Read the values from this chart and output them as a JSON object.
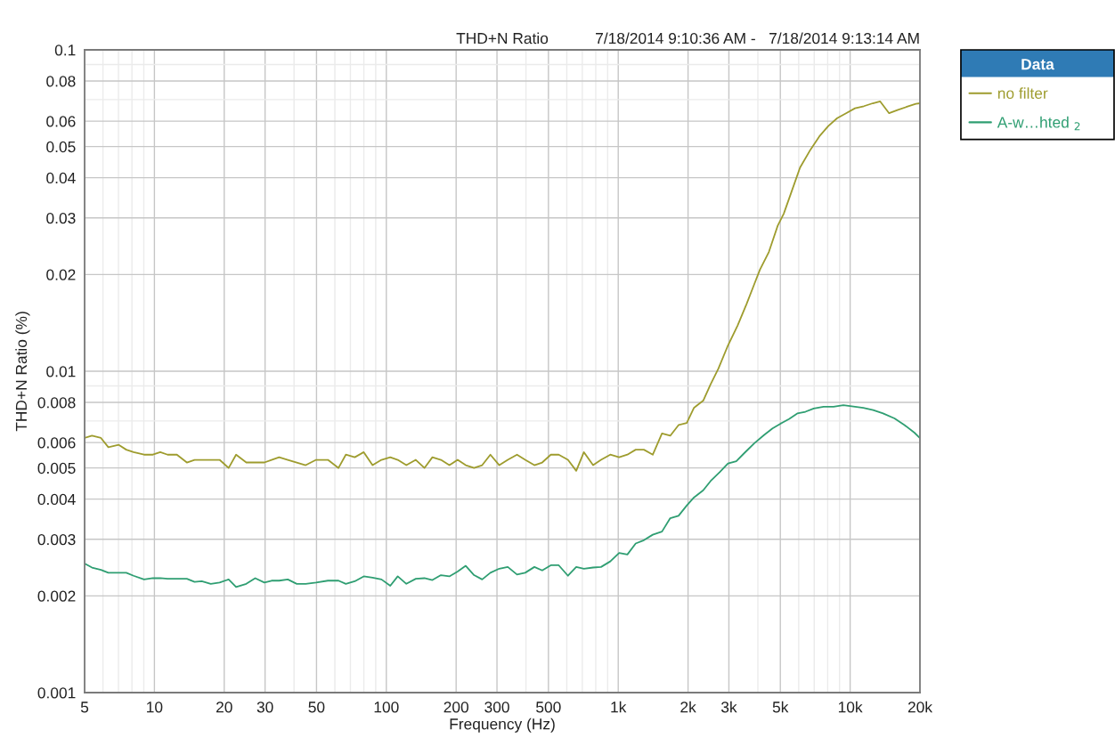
{
  "chart_data": {
    "type": "line",
    "title": "THD+N Ratio",
    "subtitle": "7/18/2014 9:10:36 AM -   7/18/2014 9:13:14 AM",
    "xlabel": "Frequency (Hz)",
    "ylabel": "THD+N Ratio (%)",
    "legend_title": "Data",
    "log": "xy",
    "grid": true,
    "legend": "top right",
    "xlim": [
      5,
      20000
    ],
    "ylim": [
      0.001,
      0.1
    ],
    "xticks": [
      5,
      {
        "value": 6,
        "label": null
      },
      {
        "value": 7,
        "label": null
      },
      {
        "value": 8,
        "label": null
      },
      {
        "value": 9,
        "label": null
      },
      10,
      20,
      30,
      {
        "value": 40,
        "label": null
      },
      50,
      {
        "value": 60,
        "label": null
      },
      {
        "value": 70,
        "label": null
      },
      {
        "value": 80,
        "label": null
      },
      {
        "value": 90,
        "label": null
      },
      100,
      200,
      300,
      {
        "value": 400,
        "label": null
      },
      500,
      {
        "value": 600,
        "label": null
      },
      {
        "value": 700,
        "label": null
      },
      {
        "value": 800,
        "label": null
      },
      {
        "value": 900,
        "label": null
      },
      {
        "value": 1000,
        "label": "1k"
      },
      {
        "value": 2000,
        "label": "2k"
      },
      {
        "value": 3000,
        "label": "3k"
      },
      {
        "value": 4000,
        "label": null
      },
      {
        "value": 5000,
        "label": "5k"
      },
      {
        "value": 6000,
        "label": null
      },
      {
        "value": 7000,
        "label": null
      },
      {
        "value": 8000,
        "label": null
      },
      {
        "value": 9000,
        "label": null
      },
      {
        "value": 10000,
        "label": "10k"
      },
      {
        "value": 20000,
        "label": "20k"
      }
    ],
    "yticks": [
      0.001,
      0.002,
      0.003,
      0.004,
      0.005,
      0.006,
      {
        "value": 0.007,
        "label": null
      },
      0.008,
      {
        "value": 0.009,
        "label": null
      },
      0.01,
      0.02,
      0.03,
      0.04,
      0.05,
      0.06,
      {
        "value": 0.07,
        "label": null
      },
      0.08,
      {
        "value": 0.09,
        "label": null
      },
      0.1
    ],
    "series": [
      {
        "name": "no filter",
        "color": "#9e9c2e",
        "x": [
          5,
          5.38,
          5.88,
          6.33,
          7.02,
          7.56,
          8.13,
          9.02,
          9.85,
          10.6,
          11.4,
          12.5,
          13.8,
          14.9,
          16,
          17.5,
          19.1,
          20.9,
          22.5,
          24.9,
          27.2,
          29.8,
          32,
          34.5,
          37.6,
          41.1,
          44.9,
          49.8,
          56,
          62.2,
          66.9,
          73.1,
          79.9,
          87.2,
          95.3,
          104,
          112,
          122,
          134,
          146,
          158,
          172,
          187,
          203,
          220,
          239,
          259,
          281,
          307,
          334,
          366,
          397,
          435,
          470,
          512,
          554,
          607,
          659,
          711,
          779,
          843,
          924,
          1009,
          1095,
          1189,
          1290,
          1409,
          1544,
          1676,
          1820,
          1974,
          2123,
          2325,
          2500,
          2705,
          2954,
          3275,
          3577,
          3853,
          4084,
          4462,
          4874,
          5171,
          5566,
          6080,
          6742,
          7366,
          8047,
          8790,
          9603,
          10491,
          11462,
          12522,
          13478,
          14724,
          16084,
          17570,
          19195,
          20000
        ],
        "values": [
          0.0062,
          0.0063,
          0.0062,
          0.0058,
          0.0059,
          0.0057,
          0.0056,
          0.0055,
          0.0055,
          0.0056,
          0.0055,
          0.0055,
          0.0052,
          0.0053,
          0.0053,
          0.0053,
          0.0053,
          0.005,
          0.0055,
          0.0052,
          0.0052,
          0.0052,
          0.0053,
          0.0054,
          0.0053,
          0.0052,
          0.0051,
          0.0053,
          0.0053,
          0.005,
          0.0055,
          0.0054,
          0.0056,
          0.0051,
          0.0053,
          0.0054,
          0.0053,
          0.0051,
          0.0053,
          0.005,
          0.0054,
          0.0053,
          0.0051,
          0.0053,
          0.0051,
          0.005,
          0.0051,
          0.0055,
          0.0051,
          0.0053,
          0.0055,
          0.0053,
          0.0051,
          0.0052,
          0.0055,
          0.0055,
          0.0053,
          0.0049,
          0.0056,
          0.0051,
          0.0053,
          0.0055,
          0.0054,
          0.0055,
          0.0057,
          0.0057,
          0.0055,
          0.0064,
          0.0063,
          0.0068,
          0.0069,
          0.0077,
          0.0081,
          0.0091,
          0.0102,
          0.0119,
          0.0139,
          0.0162,
          0.0186,
          0.0207,
          0.0235,
          0.0284,
          0.0309,
          0.0359,
          0.043,
          0.0489,
          0.0538,
          0.0579,
          0.0613,
          0.0635,
          0.0658,
          0.0668,
          0.0682,
          0.0691,
          0.0635,
          0.0651,
          0.0665,
          0.0679,
          0.0682
        ]
      },
      {
        "name": "A-w…hted $_{2}$",
        "color": "#2f9e72",
        "x": [
          5,
          5.38,
          5.88,
          6.33,
          7.02,
          7.56,
          8.13,
          9.02,
          9.85,
          10.6,
          11.4,
          12.5,
          13.8,
          14.9,
          16,
          17.5,
          19.1,
          20.9,
          22.5,
          24.9,
          27.2,
          29.8,
          32,
          34.5,
          37.6,
          41.1,
          44.9,
          49.8,
          56,
          62.2,
          66.9,
          73.1,
          79.9,
          87.2,
          95.3,
          104,
          112,
          122,
          134,
          146,
          158,
          172,
          187,
          203,
          220,
          239,
          259,
          281,
          307,
          334,
          366,
          397,
          435,
          470,
          512,
          554,
          607,
          659,
          711,
          779,
          843,
          924,
          1009,
          1095,
          1189,
          1290,
          1409,
          1544,
          1676,
          1820,
          1974,
          2123,
          2325,
          2500,
          2738,
          2973,
          3228,
          3502,
          3863,
          4261,
          4626,
          5102,
          5447,
          5916,
          6416,
          6966,
          7684,
          8479,
          9352,
          10153,
          11391,
          12568,
          13866,
          15534,
          17155,
          18923,
          20000
        ],
        "values": [
          0.00252,
          0.00245,
          0.00241,
          0.00236,
          0.00236,
          0.00236,
          0.00231,
          0.00225,
          0.00227,
          0.00227,
          0.00226,
          0.00226,
          0.00226,
          0.00221,
          0.00222,
          0.00218,
          0.0022,
          0.00225,
          0.00213,
          0.00218,
          0.00227,
          0.0022,
          0.00223,
          0.00223,
          0.00225,
          0.00218,
          0.00218,
          0.0022,
          0.00223,
          0.00223,
          0.00218,
          0.00222,
          0.0023,
          0.00228,
          0.00225,
          0.00215,
          0.0023,
          0.00218,
          0.00226,
          0.00227,
          0.00224,
          0.00232,
          0.0023,
          0.00238,
          0.00248,
          0.00232,
          0.00225,
          0.00236,
          0.00243,
          0.00246,
          0.00233,
          0.00236,
          0.00246,
          0.0024,
          0.00249,
          0.00249,
          0.00231,
          0.00246,
          0.00243,
          0.00245,
          0.00246,
          0.00256,
          0.00272,
          0.00269,
          0.00291,
          0.00298,
          0.0031,
          0.00317,
          0.00349,
          0.00355,
          0.00382,
          0.00405,
          0.00426,
          0.00455,
          0.00485,
          0.00516,
          0.00525,
          0.00557,
          0.00597,
          0.00634,
          0.00664,
          0.00692,
          0.0071,
          0.00739,
          0.00748,
          0.00766,
          0.00775,
          0.00775,
          0.00784,
          0.00778,
          0.00769,
          0.00757,
          0.00739,
          0.00713,
          0.0068,
          0.00644,
          0.00619
        ]
      }
    ]
  }
}
